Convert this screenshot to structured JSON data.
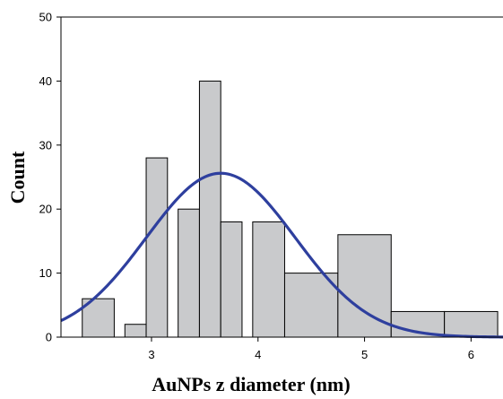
{
  "chart_data": {
    "type": "bar",
    "title": "",
    "xlabel": "AuNPs z diameter (nm)",
    "ylabel": "Count",
    "xlim": [
      2.15,
      6.3
    ],
    "ylim": [
      0,
      50
    ],
    "x_ticks": [
      3,
      4,
      5,
      6
    ],
    "y_ticks": [
      0,
      10,
      20,
      30,
      40,
      50
    ],
    "grid": false,
    "legend": "none",
    "bins": [
      {
        "start": 2.35,
        "end": 2.65,
        "count": 6
      },
      {
        "start": 2.75,
        "end": 2.95,
        "count": 2
      },
      {
        "start": 2.95,
        "end": 3.15,
        "count": 28
      },
      {
        "start": 3.25,
        "end": 3.45,
        "count": 20
      },
      {
        "start": 3.45,
        "end": 3.65,
        "count": 40
      },
      {
        "start": 3.65,
        "end": 3.85,
        "count": 18
      },
      {
        "start": 3.95,
        "end": 4.25,
        "count": 18
      },
      {
        "start": 4.25,
        "end": 4.75,
        "count": 10
      },
      {
        "start": 4.75,
        "end": 5.25,
        "count": 16
      },
      {
        "start": 5.25,
        "end": 5.75,
        "count": 4
      },
      {
        "start": 5.75,
        "end": 6.25,
        "count": 4
      }
    ],
    "fit_curve": {
      "type": "normal",
      "mean": 3.65,
      "sd": 0.7,
      "peak": 25.6,
      "color": "#2e3f9e"
    },
    "bar_fill": "#c9cacc",
    "bar_stroke": "#000000"
  }
}
